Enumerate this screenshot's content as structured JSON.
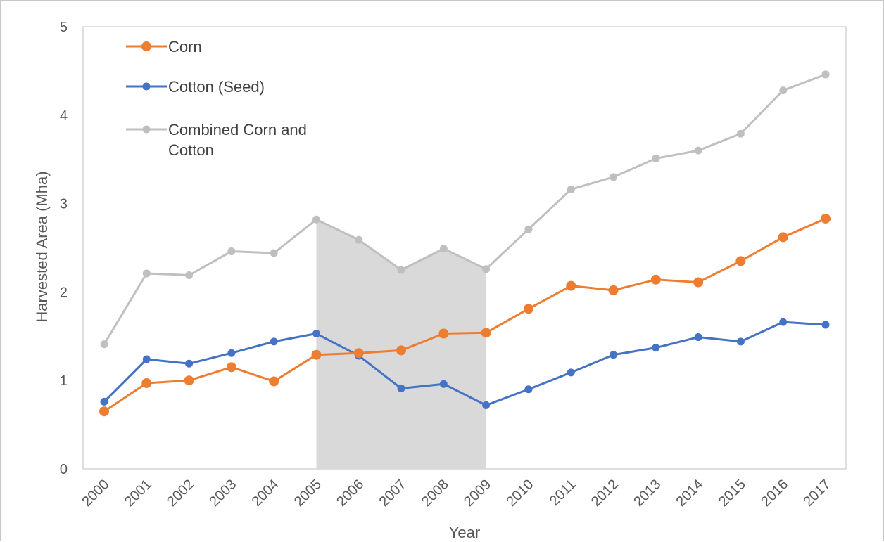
{
  "chart_data": {
    "type": "line",
    "title": "",
    "xlabel": "Year",
    "ylabel": "Harvested Area (Mha)",
    "ylim": [
      0,
      5
    ],
    "yticks": [
      "0",
      "1",
      "2",
      "3",
      "4",
      "5"
    ],
    "grid": false,
    "legend_position": "top-left",
    "categories": [
      "2000",
      "2001",
      "2002",
      "2003",
      "2004",
      "2005",
      "2006",
      "2007",
      "2008",
      "2009",
      "2010",
      "2011",
      "2012",
      "2013",
      "2014",
      "2015",
      "2016",
      "2017"
    ],
    "shaded_region": {
      "from": "2005",
      "to": "2009",
      "color": "#d9d9d9"
    },
    "series": [
      {
        "name": "Corn",
        "color": "#ed7d31",
        "marker_size": "large",
        "values": [
          0.65,
          0.97,
          1.0,
          1.15,
          0.99,
          1.29,
          1.31,
          1.34,
          1.53,
          1.54,
          1.81,
          2.07,
          2.02,
          2.14,
          2.11,
          2.35,
          2.62,
          2.83
        ]
      },
      {
        "name": "Cotton (Seed)",
        "color": "#4472c4",
        "marker_size": "small",
        "values": [
          0.76,
          1.24,
          1.19,
          1.31,
          1.44,
          1.53,
          1.28,
          0.91,
          0.96,
          0.72,
          0.9,
          1.09,
          1.29,
          1.37,
          1.49,
          1.44,
          1.66,
          1.63
        ]
      },
      {
        "name": "Combined Corn and Cotton",
        "color": "#bfbfbf",
        "marker_size": "small",
        "values": [
          1.41,
          2.21,
          2.19,
          2.46,
          2.44,
          2.82,
          2.59,
          2.25,
          2.49,
          2.26,
          2.71,
          3.16,
          3.3,
          3.51,
          3.6,
          3.79,
          4.28,
          4.46
        ]
      }
    ],
    "legend_lines": [
      [
        "Corn"
      ],
      [
        "Cotton (Seed)"
      ],
      [
        "Combined Corn and",
        "Cotton"
      ]
    ]
  }
}
